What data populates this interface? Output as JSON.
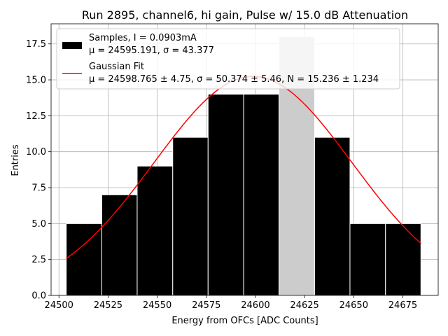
{
  "chart_data": {
    "type": "bar",
    "title": "Run 2895, channel6, hi gain, Pulse w/ 15.0 dB Attenuation",
    "xlabel": "Energy from OFCs [ADC Counts]",
    "ylabel": "Entries",
    "xlim": [
      24496,
      24693
    ],
    "ylim": [
      0,
      18.9
    ],
    "xticks": [
      24500,
      24525,
      24550,
      24575,
      24600,
      24625,
      24650,
      24675
    ],
    "yticks": [
      0.0,
      2.5,
      5.0,
      7.5,
      10.0,
      12.5,
      15.0,
      17.5
    ],
    "ytick_labels": [
      "0.0",
      "2.5",
      "5.0",
      "7.5",
      "10.0",
      "12.5",
      "15.0",
      "17.5"
    ],
    "grid": true,
    "legend_position": "top-right",
    "histogram": {
      "bin_edges": [
        24503.7,
        24521.8,
        24539.8,
        24557.9,
        24575.9,
        24594.0,
        24612.0,
        24630.1,
        24648.1,
        24666.2,
        24684.2
      ],
      "counts": [
        5,
        7,
        9,
        11,
        14,
        14,
        18,
        11,
        5,
        5
      ],
      "color": "#000000",
      "highlight_bin": 6,
      "highlight_color": "#cccccc"
    },
    "fit": {
      "mu": 24598.765,
      "sigma": 50.374,
      "amplitude": 15.236,
      "color": "#ff0000"
    },
    "legend": {
      "samples_line1": "Samples, I = 0.0903mA",
      "samples_line2": "μ = 24595.191, σ = 43.377",
      "fit_line1": "Gaussian Fit",
      "fit_line2": "μ = 24598.765 ± 4.75, σ = 50.374 ± 5.46, N = 15.236 ± 1.234"
    }
  }
}
